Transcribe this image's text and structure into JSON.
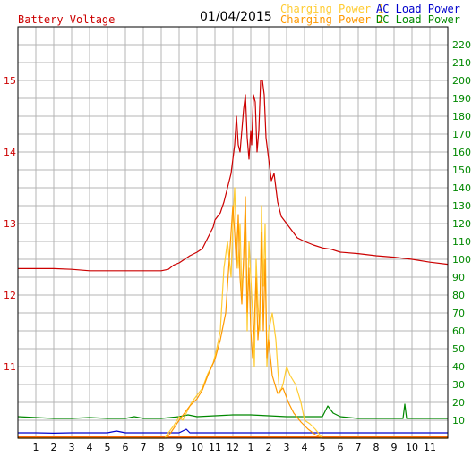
{
  "chart_data": {
    "type": "line",
    "date": "01/04/2015",
    "legend": [
      {
        "label": "Battery Voltage",
        "color": "#cc0000",
        "position": "top-left"
      },
      {
        "label": "Charging Power 1",
        "color": "#ffcc33",
        "position": "top-right"
      },
      {
        "label": "Charging Power 2",
        "color": "#ff9900",
        "position": "top-right"
      },
      {
        "label": "AC Load Power",
        "color": "#0000cc",
        "position": "top-right"
      },
      {
        "label": "DC Load Power",
        "color": "#008800",
        "position": "top-right"
      }
    ],
    "x_ticks": [
      "1",
      "2",
      "3",
      "4",
      "5",
      "6",
      "7",
      "8",
      "9",
      "10",
      "11",
      "12",
      "1",
      "2",
      "3",
      "4",
      "5",
      "6",
      "7",
      "8",
      "9",
      "10",
      "11"
    ],
    "x_range": [
      0,
      24
    ],
    "y_left": {
      "range": [
        10.0,
        15.75
      ],
      "ticks": [
        "11",
        "12",
        "13",
        "14",
        "15"
      ],
      "color": "#cc0000"
    },
    "y_right": {
      "range": [
        0,
        230
      ],
      "ticks": [
        "10",
        "20",
        "30",
        "40",
        "50",
        "60",
        "70",
        "80",
        "90",
        "100",
        "110",
        "120",
        "130",
        "140",
        "150",
        "160",
        "170",
        "180",
        "190",
        "200",
        "210",
        "220"
      ],
      "color": "#008800"
    },
    "grid": true,
    "series": [
      {
        "name": "Battery Voltage",
        "axis": "left",
        "color": "#cc0000",
        "x": [
          0,
          1,
          2,
          3,
          4,
          5,
          6,
          7,
          8,
          8.4,
          8.7,
          9,
          9.3,
          9.6,
          10,
          10.3,
          10.6,
          10.9,
          11,
          11.3,
          11.5,
          11.7,
          11.9,
          12.0,
          12.1,
          12.2,
          12.3,
          12.4,
          12.5,
          12.6,
          12.7,
          12.8,
          12.9,
          13.0,
          13.05,
          13.15,
          13.25,
          13.35,
          13.45,
          13.55,
          13.65,
          13.75,
          13.85,
          14.0,
          14.15,
          14.3,
          14.5,
          14.7,
          15,
          15.3,
          15.6,
          16,
          16.5,
          17,
          17.5,
          18,
          19,
          20,
          21,
          22,
          23,
          24
        ],
        "y": [
          12.37,
          12.37,
          12.37,
          12.36,
          12.34,
          12.34,
          12.34,
          12.34,
          12.34,
          12.36,
          12.42,
          12.45,
          12.5,
          12.55,
          12.6,
          12.65,
          12.8,
          12.95,
          13.05,
          13.15,
          13.3,
          13.5,
          13.7,
          13.9,
          14.1,
          14.5,
          14.1,
          14.0,
          14.3,
          14.6,
          14.8,
          14.2,
          13.9,
          14.3,
          14.1,
          14.8,
          14.7,
          14.0,
          14.3,
          15.0,
          15.0,
          14.8,
          14.2,
          13.9,
          13.6,
          13.7,
          13.3,
          13.1,
          13.0,
          12.9,
          12.8,
          12.75,
          12.7,
          12.66,
          12.64,
          12.6,
          12.58,
          12.55,
          12.53,
          12.5,
          12.46,
          12.43
        ]
      },
      {
        "name": "Charging Power 1",
        "axis": "right",
        "color": "#ffcc33",
        "x": [
          0,
          8.2,
          8.4,
          8.7,
          9.0,
          9.2,
          9.5,
          9.7,
          10,
          10.3,
          10.6,
          10.9,
          11.1,
          11.3,
          11.5,
          11.7,
          11.9,
          12.0,
          12.1,
          12.2,
          12.3,
          12.4,
          12.5,
          12.6,
          12.7,
          12.8,
          12.9,
          13.0,
          13.1,
          13.2,
          13.3,
          13.4,
          13.5,
          13.6,
          13.7,
          13.8,
          13.9,
          14.0,
          14.2,
          14.4,
          14.6,
          14.8,
          15.0,
          15.2,
          15.5,
          15.8,
          16.0,
          16.3,
          16.6,
          17,
          24
        ],
        "y": [
          0,
          0,
          3,
          7,
          12,
          10,
          16,
          20,
          24,
          28,
          36,
          42,
          50,
          60,
          95,
          110,
          90,
          120,
          140,
          110,
          95,
          120,
          80,
          100,
          130,
          60,
          110,
          90,
          70,
          40,
          100,
          75,
          60,
          130,
          85,
          120,
          40,
          60,
          70,
          55,
          25,
          30,
          40,
          35,
          30,
          20,
          10,
          8,
          5,
          0,
          0
        ]
      },
      {
        "name": "Charging Power 2",
        "axis": "right",
        "color": "#ff9900",
        "x": [
          0,
          8.3,
          8.6,
          9.0,
          9.3,
          9.6,
          10,
          10.3,
          10.6,
          11,
          11.3,
          11.6,
          11.8,
          12.0,
          12.1,
          12.2,
          12.3,
          12.4,
          12.5,
          12.6,
          12.7,
          12.8,
          12.9,
          13.0,
          13.1,
          13.2,
          13.3,
          13.4,
          13.5,
          13.6,
          13.7,
          13.8,
          13.9,
          14.0,
          14.2,
          14.5,
          14.8,
          15.1,
          15.4,
          15.8,
          16.2,
          16.6,
          17,
          24
        ],
        "y": [
          0,
          0,
          4,
          10,
          14,
          18,
          22,
          27,
          35,
          44,
          55,
          70,
          100,
          130,
          115,
          95,
          125,
          90,
          75,
          100,
          135,
          70,
          95,
          60,
          45,
          65,
          90,
          55,
          70,
          115,
          60,
          100,
          45,
          55,
          35,
          25,
          28,
          20,
          14,
          9,
          5,
          2,
          0,
          0
        ]
      },
      {
        "name": "AC Load Power",
        "axis": "right",
        "color": "#0000cc",
        "x": [
          0,
          1,
          2,
          3,
          4,
          5,
          5.5,
          6,
          7,
          8,
          8.5,
          9,
          9.4,
          9.6,
          10,
          11,
          12,
          13,
          14,
          15,
          16,
          17,
          18,
          19,
          20,
          21,
          22,
          23,
          24
        ],
        "y": [
          3,
          3,
          2.8,
          3,
          3,
          3,
          4,
          3,
          3,
          3,
          3,
          3,
          5,
          3,
          3,
          3,
          3,
          3,
          3,
          3,
          3,
          3,
          3,
          3,
          3,
          3,
          3,
          3,
          3
        ]
      },
      {
        "name": "DC Load Power",
        "axis": "right",
        "color": "#008800",
        "x": [
          0,
          1,
          2,
          3,
          4,
          5,
          6,
          6.5,
          7,
          8,
          9,
          9.5,
          10,
          11,
          12,
          13,
          14,
          15,
          16,
          17,
          17.3,
          17.6,
          18,
          19,
          20,
          21,
          21.5,
          21.6,
          21.7,
          22,
          23,
          24
        ],
        "y": [
          12,
          11.5,
          11,
          11,
          11.5,
          11,
          11,
          12,
          11,
          11,
          12,
          13,
          12,
          12.5,
          13,
          13,
          12.5,
          12,
          12,
          12,
          18,
          14,
          12,
          11,
          11,
          11,
          11,
          19,
          11,
          11,
          11,
          11
        ]
      }
    ]
  }
}
